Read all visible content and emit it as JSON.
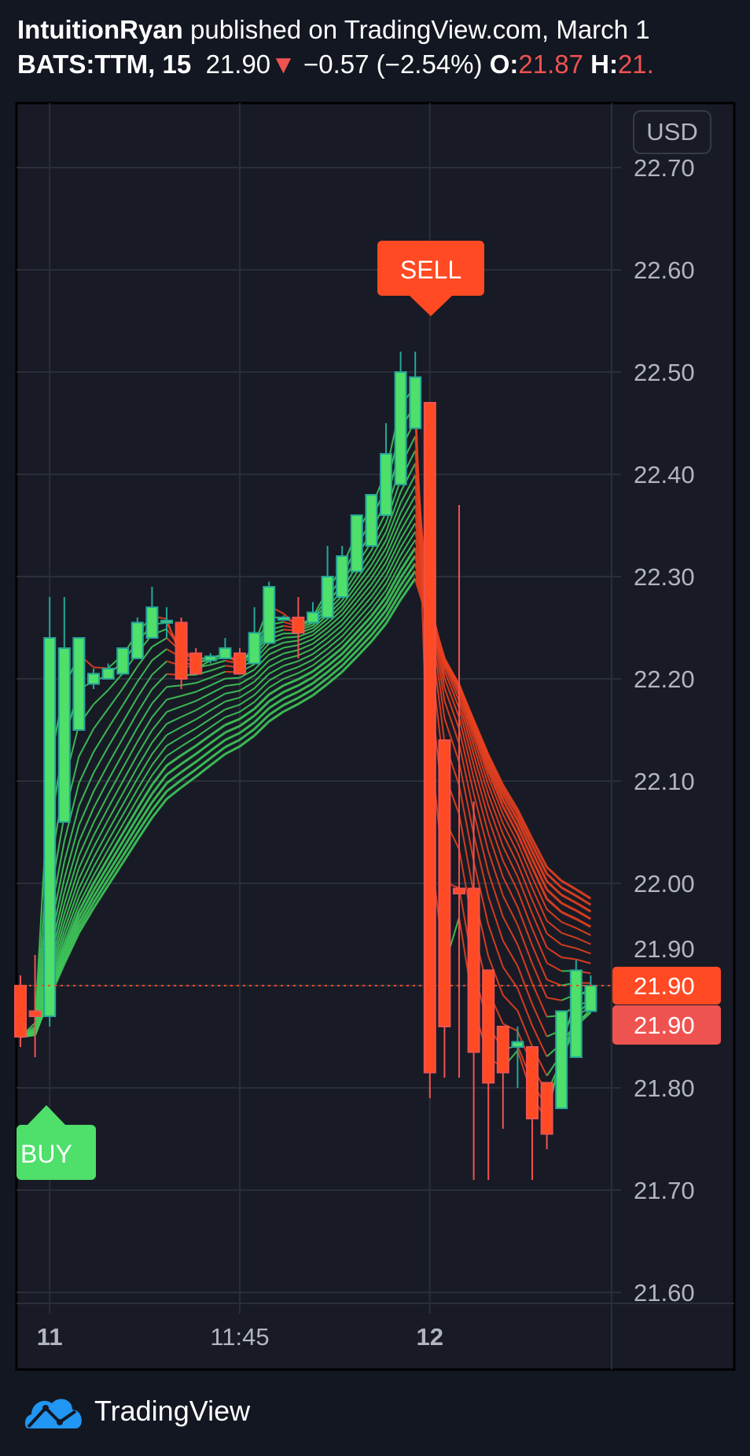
{
  "header": {
    "author": "IntuitionRyan",
    "published": "published on TradingView.com, March 1",
    "symbol": "BATS:TTM, 15",
    "last": "21.90",
    "change": "−0.57 (−2.54%)",
    "open_label": "O:",
    "open_value": "21.87",
    "high_label": "H:",
    "high_value": "21."
  },
  "currency_button": "USD",
  "signals": {
    "buy": "BUY",
    "sell": "SELL"
  },
  "price_labels": {
    "last_price": "21.90",
    "close_price": "21.90"
  },
  "brand": "TradingView",
  "colors": {
    "up": "#4ee06a",
    "up_border": "#26a69a",
    "down": "#ff4a24",
    "background": "#181b26",
    "grid": "#2a2e39",
    "buy": "#4ee06a",
    "sell": "#ff4a24"
  },
  "chart_data": {
    "type": "candlestick",
    "yticks": [
      "22.70",
      "22.60",
      "22.50",
      "22.40",
      "22.30",
      "22.20",
      "22.10",
      "22.00",
      "21.90",
      "21.80",
      "21.70",
      "21.60"
    ],
    "ylim": [
      21.58,
      22.72
    ],
    "xticks": [
      {
        "label": "11",
        "bar": 2
      },
      {
        "label": "11:45",
        "bar": 15
      },
      {
        "label": "12",
        "bar": 28
      }
    ],
    "grid": true,
    "last_price": 21.9,
    "buy_bar": 2,
    "sell_bar": 28,
    "ohlc": [
      [
        21.9,
        21.91,
        21.84,
        21.85
      ],
      [
        21.875,
        21.93,
        21.83,
        21.87
      ],
      [
        21.87,
        22.28,
        21.86,
        22.24
      ],
      [
        22.06,
        22.28,
        22.06,
        22.23
      ],
      [
        22.15,
        22.24,
        22.15,
        22.24
      ],
      [
        22.195,
        22.21,
        22.19,
        22.205
      ],
      [
        22.2,
        22.215,
        22.2,
        22.21
      ],
      [
        22.205,
        22.23,
        22.205,
        22.23
      ],
      [
        22.22,
        22.26,
        22.22,
        22.255
      ],
      [
        22.24,
        22.29,
        22.24,
        22.27
      ],
      [
        22.255,
        22.27,
        22.24,
        22.257
      ],
      [
        22.255,
        22.26,
        22.19,
        22.2
      ],
      [
        22.225,
        22.23,
        22.205,
        22.205
      ],
      [
        22.218,
        22.225,
        22.215,
        22.222
      ],
      [
        22.22,
        22.24,
        22.22,
        22.23
      ],
      [
        22.225,
        22.23,
        22.205,
        22.205
      ],
      [
        22.215,
        22.27,
        22.215,
        22.245
      ],
      [
        22.235,
        22.295,
        22.235,
        22.29
      ],
      [
        22.26,
        22.262,
        22.258,
        22.26
      ],
      [
        22.26,
        22.28,
        22.22,
        22.245
      ],
      [
        22.255,
        22.275,
        22.255,
        22.265
      ],
      [
        22.26,
        22.33,
        22.26,
        22.3
      ],
      [
        22.28,
        22.33,
        22.28,
        22.32
      ],
      [
        22.305,
        22.36,
        22.305,
        22.36
      ],
      [
        22.33,
        22.38,
        22.33,
        22.38
      ],
      [
        22.36,
        22.45,
        22.36,
        22.42
      ],
      [
        22.39,
        22.52,
        22.39,
        22.5
      ],
      [
        22.445,
        22.52,
        22.445,
        22.495
      ],
      [
        22.47,
        22.47,
        21.79,
        21.815
      ],
      [
        22.14,
        22.14,
        21.81,
        21.86
      ],
      [
        21.995,
        22.37,
        21.81,
        21.99
      ],
      [
        21.995,
        22.08,
        21.71,
        21.835
      ],
      [
        21.915,
        21.915,
        21.71,
        21.805
      ],
      [
        21.86,
        21.86,
        21.76,
        21.815
      ],
      [
        21.84,
        21.86,
        21.8,
        21.845
      ],
      [
        21.84,
        21.84,
        21.71,
        21.77
      ],
      [
        21.805,
        21.805,
        21.74,
        21.755
      ],
      [
        21.78,
        21.875,
        21.78,
        21.875
      ],
      [
        21.83,
        21.925,
        21.83,
        21.915
      ],
      [
        21.875,
        21.91,
        21.875,
        21.9
      ]
    ]
  }
}
